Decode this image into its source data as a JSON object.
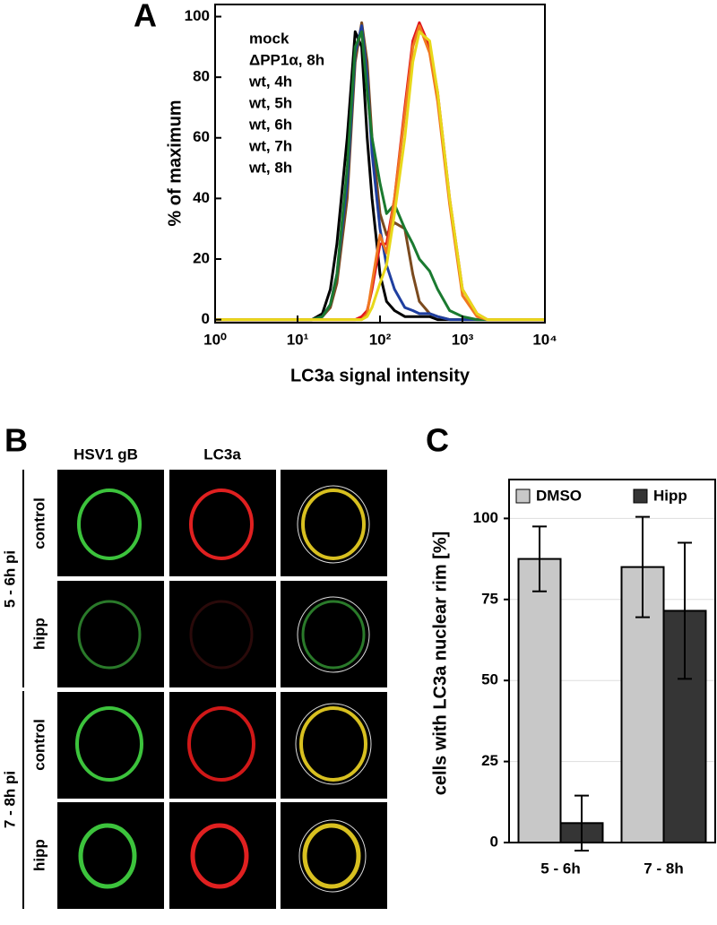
{
  "chart_data": [
    {
      "type": "line",
      "panel": "A",
      "x_label": "LC3a signal intensity",
      "y_label": "% of maximum",
      "log_x": true,
      "legend": "upper left",
      "grid": false,
      "xlim": [
        1,
        10000
      ],
      "xticks": [
        {
          "value": 1,
          "label": "10⁰"
        },
        {
          "value": 10,
          "label": "10¹"
        },
        {
          "value": 100,
          "label": "10²"
        },
        {
          "value": 1000,
          "label": "10³"
        },
        {
          "value": 10000,
          "label": "10⁴"
        }
      ],
      "ylim": [
        -1,
        104
      ],
      "yticks": [
        0,
        20,
        40,
        60,
        80,
        100
      ],
      "x": [
        1,
        10,
        15,
        20,
        25,
        30,
        40,
        50,
        60,
        70,
        80,
        100,
        120,
        150,
        200,
        250,
        300,
        400,
        500,
        700,
        1000,
        1500,
        2000,
        10000
      ],
      "series": [
        {
          "name": "mock",
          "color": "#000000",
          "values": [
            0,
            0,
            0,
            2,
            10,
            25,
            60,
            95,
            90,
            60,
            40,
            15,
            6,
            3,
            1,
            1,
            1,
            1,
            0,
            0,
            0,
            0,
            0,
            0
          ]
        },
        {
          "name": "ΔPP1α, 8h",
          "color": "#7b4a1e",
          "values": [
            0,
            0,
            0,
            1,
            4,
            12,
            40,
            85,
            98,
            85,
            60,
            35,
            28,
            32,
            30,
            15,
            6,
            2,
            1,
            0,
            0,
            0,
            0,
            0
          ]
        },
        {
          "name": "wt, 4h",
          "color": "#1f3fa0",
          "values": [
            0,
            0,
            0,
            1,
            5,
            15,
            45,
            88,
            97,
            80,
            55,
            30,
            18,
            10,
            4,
            3,
            2,
            2,
            1,
            0,
            0,
            0,
            0,
            0
          ]
        },
        {
          "name": "wt, 5h",
          "color": "#1a7a30",
          "values": [
            0,
            0,
            0,
            1,
            5,
            15,
            50,
            90,
            95,
            75,
            60,
            45,
            35,
            38,
            30,
            25,
            20,
            16,
            10,
            3,
            1,
            0,
            0,
            0
          ]
        },
        {
          "name": "wt, 6h",
          "color": "#e0141e",
          "values": [
            0,
            0,
            0,
            0,
            0,
            0,
            0,
            0,
            1,
            3,
            10,
            25,
            25,
            40,
            70,
            92,
            98,
            90,
            75,
            40,
            10,
            2,
            0,
            0
          ]
        },
        {
          "name": "wt, 7h",
          "color": "#f07820",
          "values": [
            0,
            0,
            0,
            0,
            0,
            0,
            0,
            0,
            0,
            2,
            12,
            28,
            22,
            40,
            68,
            90,
            97,
            88,
            72,
            38,
            8,
            1,
            0,
            0
          ]
        },
        {
          "name": "wt, 8h",
          "color": "#e8d81a",
          "values": [
            0,
            0,
            0,
            0,
            0,
            0,
            0,
            0,
            0,
            1,
            4,
            12,
            18,
            35,
            60,
            85,
            95,
            92,
            75,
            40,
            10,
            2,
            0,
            0
          ]
        }
      ]
    },
    {
      "type": "bar",
      "panel": "C",
      "y_label": "cells with LC3a nuclear rim [%]",
      "legend": "top",
      "grid": true,
      "categories": [
        "5 - 6h",
        "7 - 8h"
      ],
      "ylim": [
        0,
        112
      ],
      "yticks": [
        0,
        25,
        50,
        75,
        100
      ],
      "series": [
        {
          "name": "DMSO",
          "color": "#c8c8c8",
          "values": [
            87.5,
            85
          ],
          "errors": [
            10,
            15.5
          ]
        },
        {
          "name": "Hipp",
          "color": "#353535",
          "values": [
            6,
            71.5
          ],
          "errors": [
            8.5,
            21
          ]
        }
      ]
    }
  ],
  "panel_b": {
    "label": "B",
    "columns": [
      "HSV1 gB",
      "LC3a"
    ],
    "groups": [
      {
        "label": "5 - 6h pi",
        "rows": [
          "control",
          "hipp"
        ]
      },
      {
        "label": "7 - 8h pi",
        "rows": [
          "control",
          "hipp"
        ]
      }
    ]
  }
}
